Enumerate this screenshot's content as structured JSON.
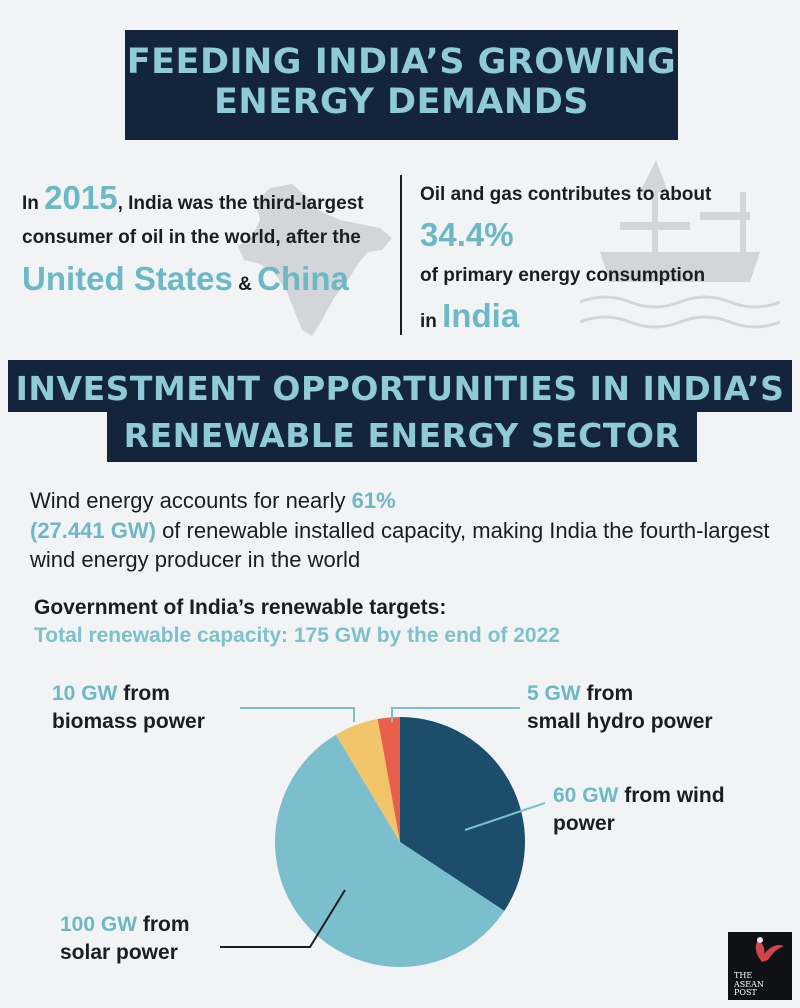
{
  "header": {
    "title_line1": "FEEDING INDIA’S GROWING",
    "title_line2": "ENERGY DEMANDS"
  },
  "left_stat": {
    "prefix": "In",
    "year": "2015",
    "text1": ", India was the third-largest consumer of oil in the world, after the",
    "country1": "United States",
    "amp": "&",
    "country2": "China"
  },
  "right_stat": {
    "text1": "Oil and gas contributes to about",
    "percent": "34.4%",
    "text2": "of primary energy consumption",
    "in": "in",
    "country": "India"
  },
  "section2": {
    "title_line1": "INVESTMENT OPPORTUNITIES IN INDIA’S",
    "title_line2": "RENEWABLE ENERGY SECTOR"
  },
  "wind": {
    "text1": "Wind energy accounts for nearly",
    "pct": "61%",
    "gw": "(27.441 GW)",
    "text2": "of renewable installed capacity, making India the fourth-largest wind energy producer in the world"
  },
  "targets": {
    "title": "Government of India’s renewable targets:",
    "subtitle": "Total renewable capacity: 175 GW by the end of 2022"
  },
  "labels": {
    "biomass_num": "10 GW",
    "biomass_text1": "from",
    "biomass_text2": "biomass power",
    "hydro_num": "5 GW",
    "hydro_text1": "from",
    "hydro_text2": "small hydro power",
    "wind_num": "60 GW",
    "wind_text1": "from wind",
    "wind_text2": "power",
    "solar_num": "100 GW",
    "solar_text1": "from",
    "solar_text2": "solar power"
  },
  "logo": {
    "line1": "THE",
    "line2": "ASEAN",
    "line3": "POST"
  },
  "chart_data": {
    "type": "pie",
    "categories": [
      "wind power",
      "solar power",
      "biomass power",
      "small hydro power"
    ],
    "values": [
      60,
      100,
      10,
      5
    ],
    "unit": "GW",
    "colors": [
      "#1c4d6a",
      "#7bbfcd",
      "#f2c56b",
      "#e8604c"
    ]
  }
}
